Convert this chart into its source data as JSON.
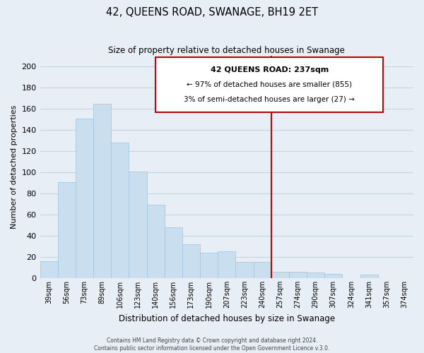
{
  "title": "42, QUEENS ROAD, SWANAGE, BH19 2ET",
  "subtitle": "Size of property relative to detached houses in Swanage",
  "xlabel": "Distribution of detached houses by size in Swanage",
  "ylabel": "Number of detached properties",
  "bar_labels": [
    "39sqm",
    "56sqm",
    "73sqm",
    "89sqm",
    "106sqm",
    "123sqm",
    "140sqm",
    "156sqm",
    "173sqm",
    "190sqm",
    "207sqm",
    "223sqm",
    "240sqm",
    "257sqm",
    "274sqm",
    "290sqm",
    "307sqm",
    "324sqm",
    "341sqm",
    "357sqm",
    "374sqm"
  ],
  "bar_values": [
    16,
    91,
    151,
    165,
    128,
    101,
    69,
    48,
    32,
    24,
    25,
    15,
    15,
    6,
    6,
    5,
    4,
    0,
    3,
    0,
    0
  ],
  "bar_color": "#c9dff0",
  "bar_edge_color": "#a8c8e0",
  "vline_x": 12.5,
  "vline_color": "#cc0000",
  "annotation_title": "42 QUEENS ROAD: 237sqm",
  "annotation_line1": "← 97% of detached houses are smaller (855)",
  "annotation_line2": "3% of semi-detached houses are larger (27) →",
  "annotation_box_color": "#ffffff",
  "annotation_box_edge": "#cc0000",
  "ylim": [
    0,
    210
  ],
  "yticks": [
    0,
    20,
    40,
    60,
    80,
    100,
    120,
    140,
    160,
    180,
    200
  ],
  "footer1": "Contains HM Land Registry data © Crown copyright and database right 2024.",
  "footer2": "Contains public sector information licensed under the Open Government Licence v.3.0.",
  "bg_color": "#e8eef5",
  "grid_color": "#c8d4de"
}
